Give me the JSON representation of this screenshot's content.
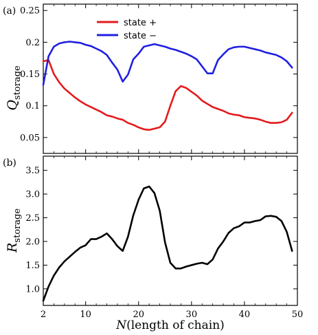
{
  "chart_data": [
    {
      "panel": "(a)",
      "type": "line",
      "ylabel_main": "Q",
      "ylabel_sub": "storage",
      "xlim": [
        2,
        50
      ],
      "ylim": [
        0.025,
        0.26
      ],
      "xticks": [
        2,
        10,
        20,
        30,
        40,
        50
      ],
      "yticks": [
        0.05,
        0.1,
        0.15,
        0.2,
        0.25
      ],
      "ytick_labels": [
        "0.05",
        "0.1",
        "0.15",
        "0.2",
        "0.25"
      ],
      "legend_position": "top-center",
      "series": [
        {
          "name": "state +",
          "color": "#e41a1c",
          "x": [
            2,
            3,
            4,
            5,
            6,
            7,
            8,
            9,
            10,
            11,
            12,
            13,
            14,
            15,
            16,
            17,
            18,
            19,
            20,
            21,
            22,
            23,
            24,
            25,
            26,
            27,
            28,
            29,
            30,
            31,
            32,
            33,
            34,
            35,
            36,
            37,
            38,
            39,
            40,
            41,
            42,
            43,
            44,
            45,
            46,
            47,
            48,
            49
          ],
          "y": [
            0.17,
            0.172,
            0.15,
            0.137,
            0.127,
            0.12,
            0.113,
            0.107,
            0.102,
            0.098,
            0.094,
            0.09,
            0.085,
            0.083,
            0.08,
            0.078,
            0.073,
            0.07,
            0.066,
            0.063,
            0.062,
            0.064,
            0.066,
            0.075,
            0.1,
            0.123,
            0.131,
            0.128,
            0.122,
            0.116,
            0.108,
            0.103,
            0.098,
            0.095,
            0.092,
            0.088,
            0.086,
            0.085,
            0.082,
            0.081,
            0.08,
            0.078,
            0.075,
            0.073,
            0.073,
            0.074,
            0.078,
            0.089
          ]
        },
        {
          "name": "state −",
          "color": "#1f1fe0",
          "x": [
            2,
            3,
            4,
            5,
            6,
            7,
            8,
            9,
            10,
            11,
            12,
            13,
            14,
            15,
            16,
            17,
            18,
            19,
            20,
            21,
            22,
            23,
            24,
            25,
            26,
            27,
            28,
            29,
            30,
            31,
            32,
            33,
            34,
            35,
            36,
            37,
            38,
            39,
            40,
            41,
            42,
            43,
            44,
            45,
            46,
            47,
            48,
            49
          ],
          "y": [
            0.133,
            0.178,
            0.193,
            0.198,
            0.2,
            0.201,
            0.2,
            0.199,
            0.196,
            0.194,
            0.19,
            0.186,
            0.18,
            0.168,
            0.157,
            0.138,
            0.149,
            0.173,
            0.182,
            0.193,
            0.195,
            0.197,
            0.195,
            0.193,
            0.19,
            0.188,
            0.185,
            0.182,
            0.178,
            0.173,
            0.162,
            0.151,
            0.151,
            0.172,
            0.181,
            0.189,
            0.192,
            0.193,
            0.193,
            0.191,
            0.189,
            0.187,
            0.184,
            0.182,
            0.18,
            0.176,
            0.17,
            0.16
          ]
        }
      ]
    },
    {
      "panel": "(b)",
      "type": "line",
      "ylabel_main": "R",
      "ylabel_sub": "storage",
      "xlabel_main": "N",
      "xlabel_rest": "(length of chain)",
      "xlim": [
        2,
        50
      ],
      "ylim": [
        0.65,
        3.8
      ],
      "xticks": [
        2,
        10,
        20,
        30,
        40,
        50
      ],
      "yticks": [
        1.0,
        1.5,
        2.0,
        2.5,
        3.0,
        3.5
      ],
      "ytick_labels": [
        "1.0",
        "1.5",
        "2.0",
        "2.5",
        "3.0",
        "3.5"
      ],
      "series": [
        {
          "color": "#000000",
          "x": [
            2,
            3,
            4,
            5,
            6,
            7,
            8,
            9,
            10,
            11,
            12,
            13,
            14,
            15,
            16,
            17,
            18,
            19,
            20,
            21,
            22,
            23,
            24,
            25,
            26,
            27,
            28,
            29,
            30,
            31,
            32,
            33,
            34,
            35,
            36,
            37,
            38,
            39,
            40,
            41,
            42,
            43,
            44,
            45,
            46,
            47,
            48,
            49
          ],
          "y": [
            0.75,
            1.05,
            1.28,
            1.45,
            1.58,
            1.68,
            1.78,
            1.87,
            1.92,
            2.05,
            2.05,
            2.1,
            2.17,
            2.05,
            1.9,
            1.8,
            2.1,
            2.55,
            2.88,
            3.12,
            3.16,
            3.02,
            2.65,
            1.98,
            1.55,
            1.43,
            1.43,
            1.47,
            1.5,
            1.53,
            1.55,
            1.52,
            1.62,
            1.85,
            2.0,
            2.18,
            2.28,
            2.32,
            2.4,
            2.4,
            2.43,
            2.45,
            2.53,
            2.54,
            2.52,
            2.43,
            2.2,
            1.8
          ]
        }
      ]
    }
  ]
}
